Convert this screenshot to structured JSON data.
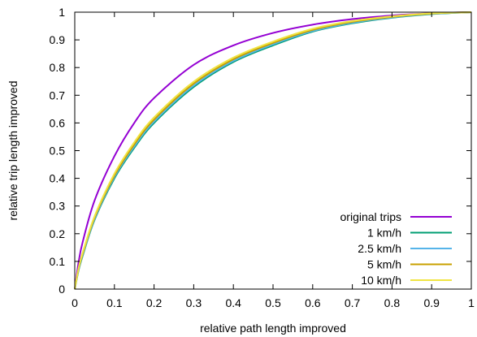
{
  "chart_data": {
    "type": "line",
    "title": "",
    "xlabel": "relative path length improved",
    "ylabel": "relative trip length improved",
    "xlim": [
      0,
      1
    ],
    "ylim": [
      0,
      1
    ],
    "x_ticks": [
      "0",
      "0.1",
      "0.2",
      "0.3",
      "0.4",
      "0.5",
      "0.6",
      "0.7",
      "0.8",
      "0.9",
      "1"
    ],
    "y_ticks": [
      "0",
      "0.1",
      "0.2",
      "0.3",
      "0.4",
      "0.5",
      "0.6",
      "0.7",
      "0.8",
      "0.9",
      "1"
    ],
    "grid": false,
    "legend_position": "bottom-right",
    "x": [
      0,
      0.01,
      0.02,
      0.05,
      0.1,
      0.15,
      0.2,
      0.3,
      0.4,
      0.5,
      0.6,
      0.7,
      0.8,
      0.9,
      1.0
    ],
    "series": [
      {
        "name": "original trips",
        "color": "#9400d3",
        "values": [
          0,
          0.1,
          0.17,
          0.32,
          0.48,
          0.6,
          0.69,
          0.81,
          0.88,
          0.925,
          0.955,
          0.975,
          0.988,
          0.996,
          1.0
        ]
      },
      {
        "name": "1 km/h",
        "color": "#009e73",
        "values": [
          0,
          0.07,
          0.12,
          0.25,
          0.4,
          0.51,
          0.6,
          0.73,
          0.82,
          0.88,
          0.93,
          0.96,
          0.98,
          0.993,
          1.0
        ]
      },
      {
        "name": "2.5 km/h",
        "color": "#56b4e9",
        "values": [
          0,
          0.072,
          0.123,
          0.253,
          0.405,
          0.515,
          0.605,
          0.735,
          0.824,
          0.884,
          0.932,
          0.962,
          0.981,
          0.994,
          1.0
        ]
      },
      {
        "name": "5 km/h",
        "color": "#c8a000",
        "values": [
          0,
          0.075,
          0.127,
          0.258,
          0.41,
          0.522,
          0.612,
          0.742,
          0.83,
          0.889,
          0.936,
          0.965,
          0.983,
          0.995,
          1.0
        ]
      },
      {
        "name": "10 km/h",
        "color": "#f0e442",
        "values": [
          0,
          0.078,
          0.131,
          0.263,
          0.417,
          0.53,
          0.62,
          0.749,
          0.836,
          0.894,
          0.94,
          0.968,
          0.985,
          0.996,
          1.0
        ]
      }
    ]
  }
}
